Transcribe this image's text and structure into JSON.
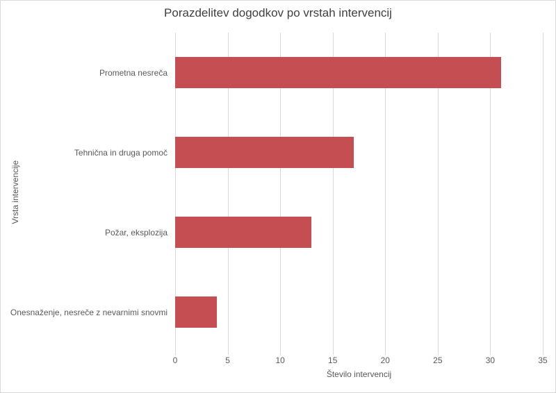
{
  "chart_data": {
    "type": "bar",
    "orientation": "horizontal",
    "title": "Porazdelitev dogodkov po vrstah intervencij",
    "xlabel": "Število intervencij",
    "ylabel": "Vrsta intervencije",
    "categories": [
      "Prometna nesreča",
      "Tehnična in druga pomoč",
      "Požar, eksplozija",
      "Onesnaženje, nesreče z nevarnimi snovmi"
    ],
    "values": [
      31,
      17,
      13,
      4
    ],
    "xlim": [
      0,
      35
    ],
    "xticks": [
      0,
      5,
      10,
      15,
      20,
      25,
      30,
      35
    ],
    "grid": "vertical",
    "legend": "none",
    "bar_color": "#C44E52",
    "gridline_color": "#D9D9D9",
    "text_color": "#595959",
    "title_color": "#404040",
    "background_color": "#FFFFFF"
  }
}
